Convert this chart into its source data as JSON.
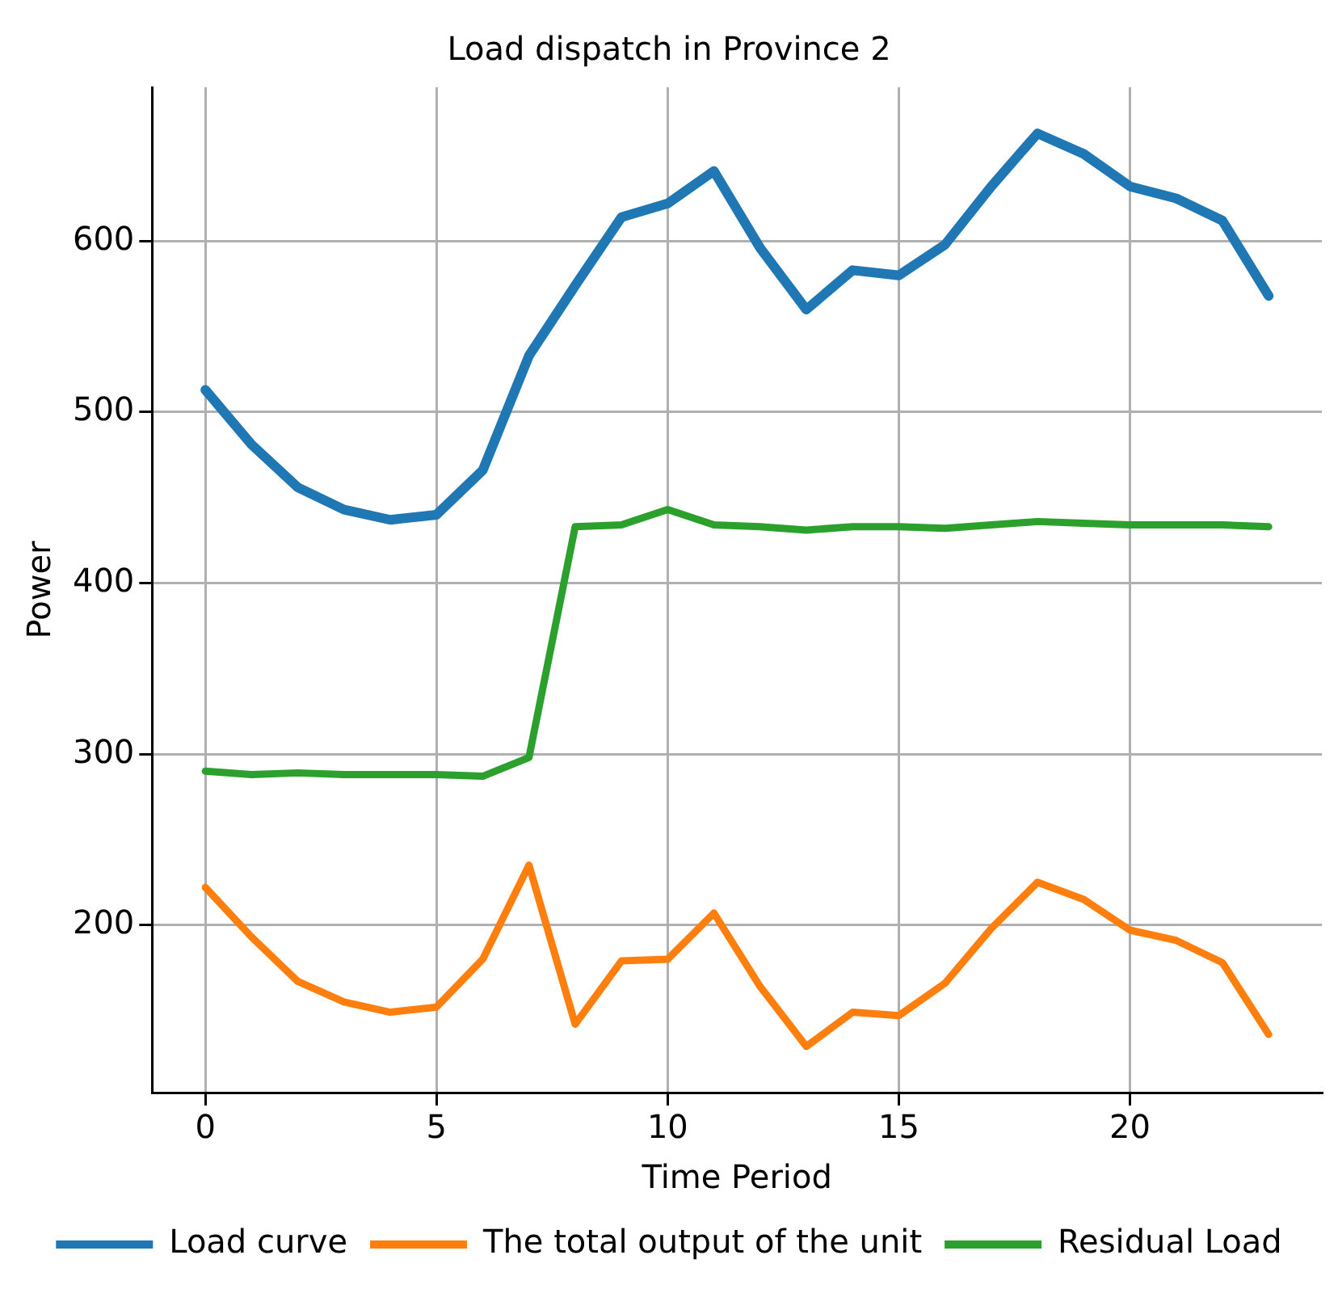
{
  "chart_data": {
    "type": "line",
    "title": "Load dispatch in Province 2",
    "xlabel": "Time Period",
    "ylabel": "Power",
    "x": [
      0,
      1,
      2,
      3,
      4,
      5,
      6,
      7,
      8,
      9,
      10,
      11,
      12,
      13,
      14,
      15,
      16,
      17,
      18,
      19,
      20,
      21,
      22,
      23
    ],
    "series": [
      {
        "name": "Load curve",
        "color": "#1f77b4",
        "values": [
          513,
          481,
          456,
          443,
          437,
          440,
          466,
          533,
          574,
          614,
          622,
          641,
          596,
          560,
          583,
          580,
          598,
          632,
          663,
          651,
          632,
          625,
          612,
          568
        ]
      },
      {
        "name": "The total output of the unit",
        "color": "#ff7f0e",
        "values": [
          222,
          193,
          167,
          155,
          149,
          152,
          180,
          235,
          142,
          179,
          180,
          207,
          164,
          129,
          149,
          147,
          166,
          198,
          225,
          215,
          197,
          191,
          178,
          136
        ]
      },
      {
        "name": "Residual Load",
        "color": "#2ca02c",
        "values": [
          290,
          288,
          289,
          288,
          288,
          288,
          287,
          298,
          433,
          434,
          443,
          434,
          433,
          431,
          433,
          433,
          432,
          434,
          436,
          435,
          434,
          434,
          434,
          433
        ]
      }
    ],
    "xlim": [
      -1.15,
      24.15
    ],
    "xticks": [
      0,
      5,
      10,
      15,
      20
    ],
    "ylim": [
      102,
      690
    ],
    "yticks": [
      200,
      300,
      400,
      500,
      600
    ],
    "grid": true,
    "legend": "bottom",
    "marker": "none",
    "line_style": "solid"
  }
}
